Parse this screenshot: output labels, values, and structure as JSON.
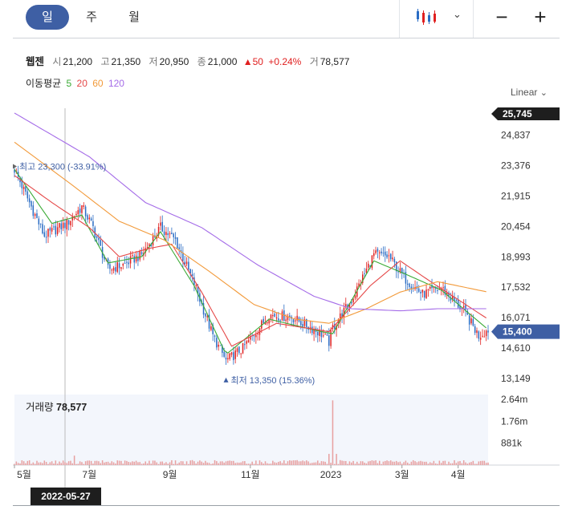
{
  "tabs": [
    "일",
    "주",
    "월"
  ],
  "toolbar": {
    "candle_icon": "candlestick-icon",
    "minus_label": "−",
    "plus_label": "+"
  },
  "quote": {
    "name": "웹젠",
    "open_label": "시",
    "open": "21,200",
    "high_label": "고",
    "high": "21,350",
    "low_label": "저",
    "low": "20,950",
    "close_label": "종",
    "close": "21,000",
    "change": "▲50",
    "change_pct": "+0.24%",
    "volume_label": "거",
    "volume": "78,577"
  },
  "moving_average": {
    "label": "이동평균",
    "periods": [
      {
        "label": "5",
        "color": "#3aaa35"
      },
      {
        "label": "20",
        "color": "#e54848"
      },
      {
        "label": "60",
        "color": "#f29a3a"
      },
      {
        "label": "120",
        "color": "#a46be8"
      }
    ]
  },
  "scale_label": "Linear",
  "colors": {
    "up": "#e02020",
    "down": "#2a6cc4",
    "accent": "#3e5fa4",
    "vol_bar": "#e8a0a0"
  },
  "volume_panel": {
    "label": "거래량",
    "value": "78,577"
  },
  "cursor_date": "2022-05-27",
  "chart_data": {
    "type": "candlestick",
    "price_axis": {
      "ticks": [
        "24,837",
        "23,376",
        "21,915",
        "20,454",
        "18,993",
        "17,532",
        "16,071",
        "14,610",
        "13,149"
      ],
      "tick_values": [
        24837,
        23376,
        21915,
        20454,
        18993,
        17532,
        16071,
        14610,
        13149
      ],
      "top_marker": "25,745",
      "current_marker": "15,400",
      "current_value": 15400
    },
    "volume_axis": {
      "ticks": [
        "2.64m",
        "1.76m",
        "881k"
      ],
      "tick_values": [
        2640000,
        1760000,
        881000
      ]
    },
    "x_axis": {
      "labels": [
        "5월",
        "7월",
        "9월",
        "11월",
        "2023",
        "3월",
        "4월"
      ],
      "positions": [
        0,
        40,
        83,
        126,
        169,
        207,
        237
      ]
    },
    "num_days": 254,
    "annotations": {
      "high": {
        "text": "최고 23,300 (-33.91%)",
        "value": 23300,
        "day": 0
      },
      "low": {
        "text": "최저 13,350 (15.36%)",
        "value": 13350,
        "day": 113
      }
    },
    "price_path": [
      [
        0,
        23200
      ],
      [
        8,
        21600
      ],
      [
        16,
        20000
      ],
      [
        28,
        20600
      ],
      [
        36,
        21400
      ],
      [
        42,
        20400
      ],
      [
        50,
        18400
      ],
      [
        58,
        18600
      ],
      [
        68,
        19100
      ],
      [
        78,
        20400
      ],
      [
        86,
        19800
      ],
      [
        96,
        17700
      ],
      [
        106,
        15200
      ],
      [
        113,
        14000
      ],
      [
        122,
        14600
      ],
      [
        136,
        16200
      ],
      [
        148,
        16100
      ],
      [
        156,
        15700
      ],
      [
        164,
        15300
      ],
      [
        168,
        14900
      ],
      [
        170,
        15600
      ],
      [
        180,
        16900
      ],
      [
        192,
        19100
      ],
      [
        200,
        19000
      ],
      [
        208,
        18000
      ],
      [
        218,
        17200
      ],
      [
        228,
        17500
      ],
      [
        240,
        16400
      ],
      [
        248,
        15200
      ],
      [
        253,
        15500
      ]
    ],
    "ma": [
      {
        "period": "5",
        "points": [
          [
            0,
            23200
          ],
          [
            20,
            20600
          ],
          [
            36,
            21000
          ],
          [
            50,
            18700
          ],
          [
            68,
            19000
          ],
          [
            78,
            20200
          ],
          [
            96,
            17600
          ],
          [
            113,
            14300
          ],
          [
            136,
            16000
          ],
          [
            164,
            15400
          ],
          [
            170,
            15300
          ],
          [
            192,
            18800
          ],
          [
            208,
            18200
          ],
          [
            228,
            17400
          ],
          [
            253,
            15500
          ]
        ]
      },
      {
        "period": "20",
        "points": [
          [
            0,
            22900
          ],
          [
            20,
            21600
          ],
          [
            40,
            20400
          ],
          [
            56,
            19000
          ],
          [
            72,
            19400
          ],
          [
            84,
            19600
          ],
          [
            100,
            17300
          ],
          [
            116,
            14700
          ],
          [
            140,
            15800
          ],
          [
            168,
            15400
          ],
          [
            190,
            17600
          ],
          [
            206,
            18800
          ],
          [
            224,
            17700
          ],
          [
            253,
            16000
          ]
        ]
      },
      {
        "period": "60",
        "points": [
          [
            0,
            24500
          ],
          [
            30,
            22500
          ],
          [
            56,
            20700
          ],
          [
            80,
            19800
          ],
          [
            104,
            18300
          ],
          [
            128,
            16700
          ],
          [
            150,
            16000
          ],
          [
            168,
            15800
          ],
          [
            188,
            16500
          ],
          [
            206,
            17300
          ],
          [
            226,
            17800
          ],
          [
            253,
            17300
          ]
        ]
      },
      {
        "period": "120",
        "points": [
          [
            0,
            25900
          ],
          [
            40,
            23800
          ],
          [
            70,
            21600
          ],
          [
            100,
            20400
          ],
          [
            130,
            18600
          ],
          [
            160,
            17100
          ],
          [
            180,
            16500
          ],
          [
            206,
            16400
          ],
          [
            226,
            16500
          ],
          [
            253,
            16500
          ]
        ]
      }
    ],
    "volume_spike": {
      "day": 170,
      "value": 2600000
    }
  }
}
